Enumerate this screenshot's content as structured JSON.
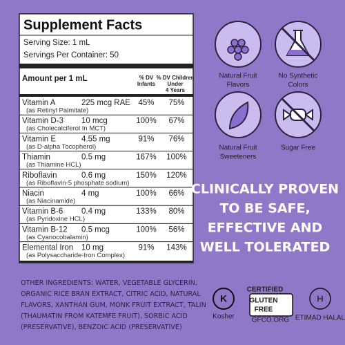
{
  "panel": {
    "title": "Supplement Facts",
    "serving_size": "Serving Size: 1 mL",
    "servings": "Servings Per Container: 50",
    "header": {
      "amount": "Amount per 1 mL",
      "infants": [
        "% DV",
        "Infants"
      ],
      "children": [
        "% DV Children",
        "Under",
        "4 Years"
      ]
    },
    "rows": [
      {
        "name": "Vitamin A",
        "amount": "225 mcg RAE",
        "infants": "45%",
        "children": "75%",
        "source": "(as Retinyl Palmitate)"
      },
      {
        "name": "Vitamin D-3",
        "amount": "10 mcg",
        "infants": "100%",
        "children": "67%",
        "source": "(as Cholecalciferol In MCT)"
      },
      {
        "name": "Vitamin E",
        "amount": "4.55 mg",
        "infants": "91%",
        "children": "76%",
        "source": "(as D-alpha Tocopherol)"
      },
      {
        "name": "Thiamin",
        "amount": "0.5 mg",
        "infants": "167%",
        "children": "100%",
        "source": "(as Thiamine HCL)"
      },
      {
        "name": "Riboflavin",
        "amount": "0.6 mg",
        "infants": "150%",
        "children": "120%",
        "source": "(as Riboflavin-5 phosphate sodium)"
      },
      {
        "name": "Niacin",
        "amount": "4 mg",
        "infants": "100%",
        "children": "66%",
        "source": "(as Niacinamide)"
      },
      {
        "name": "Vitamin B-6",
        "amount": "0.4 mg",
        "infants": "133%",
        "children": "80%",
        "source": "(as Pyridoxine HCL)"
      },
      {
        "name": "Vitamin B-12",
        "amount": "0.5 mcg",
        "infants": "100%",
        "children": "56%",
        "source": "(as Cyanocobalamin)"
      },
      {
        "name": "Elemental Iron",
        "amount": "10 mg",
        "infants": "91%",
        "children": "143%",
        "source": "(as Polysaccharide-Iron Complex)"
      }
    ]
  },
  "features": [
    [
      "Natural Fruit",
      "Flavors"
    ],
    [
      "No Synthetic",
      "Colors"
    ],
    [
      "Natural Fruit",
      "Sweeteners"
    ],
    [
      "Sugar Free"
    ]
  ],
  "claim": [
    "CLINICALLY PROVEN",
    "TO BE SAFE,",
    "EFFECTIVE AND",
    "WELL TOLERATED"
  ],
  "ingredients": [
    "OTHER INGREDIENTS: WATER, VEGETABLE GLYCERIN,",
    "ORGANIC RICE BRAN EXTRACT, CITRIC ACID, NATURAL",
    "FLAVORS, XANTHAN GUM, MONK FRUIT EXTRACT, TALIN",
    "(THAUMATIN FROM KATEMFE FRUIT), SORBIC ACID",
    "(PRESERVATIVE), BENZOIC ACID (PRESERVATIVE)"
  ],
  "logos": {
    "kosher": "Kosher",
    "certified": "CERTIFIED",
    "gluten": "GLUTEN",
    "free": "FREE",
    "gfco": "GFCO.ORG",
    "halal": "ETIMAD HALAL"
  }
}
